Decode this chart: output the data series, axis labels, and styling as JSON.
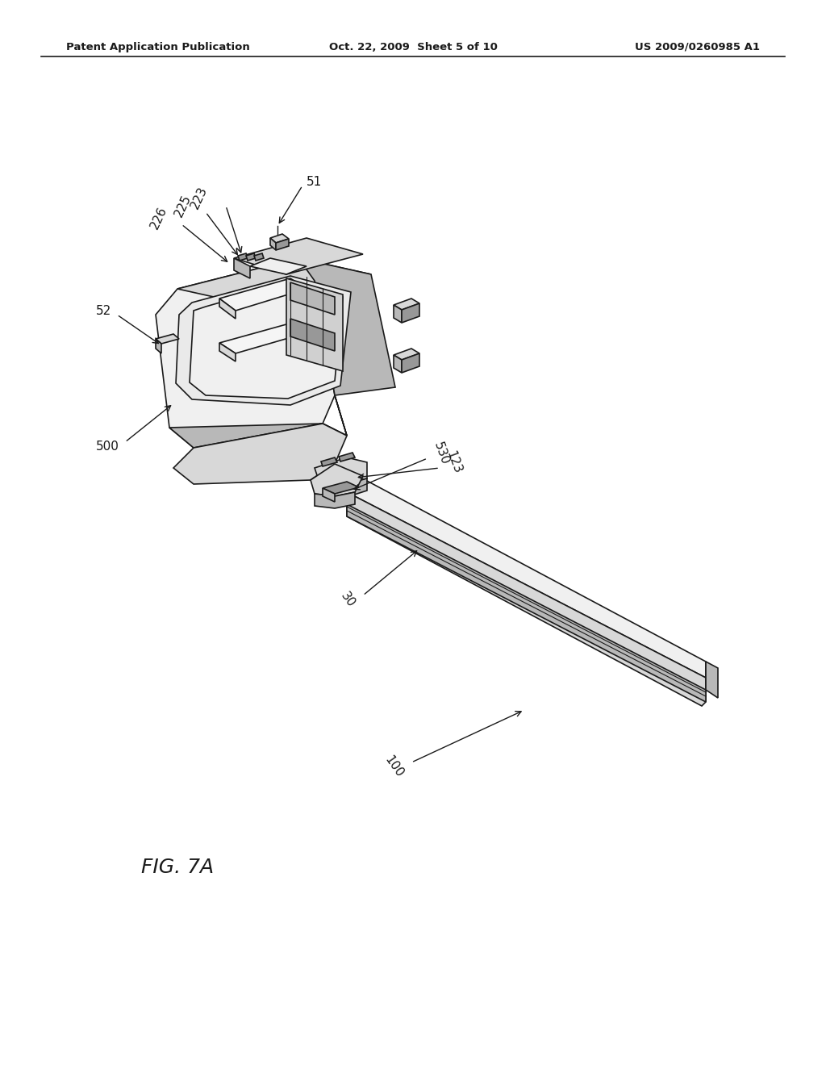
{
  "background_color": "#ffffff",
  "title_left": "Patent Application Publication",
  "title_center": "Oct. 22, 2009  Sheet 5 of 10",
  "title_right": "US 2009/0260985 A1",
  "fig_label": "FIG. 7A",
  "line_color": "#1a1a1a",
  "face_light": "#f0f0f0",
  "face_mid": "#d8d8d8",
  "face_dark": "#b8b8b8",
  "face_darker": "#989898"
}
